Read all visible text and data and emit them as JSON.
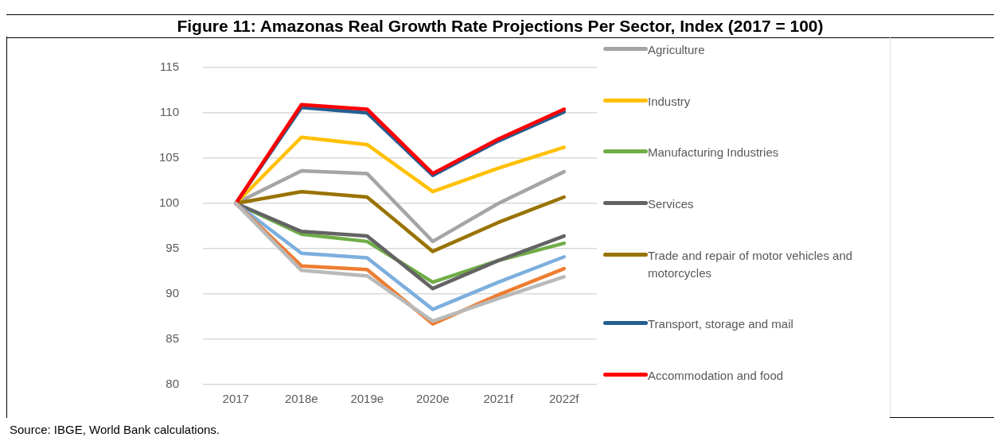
{
  "chart_data": {
    "type": "line",
    "title": "Figure 11: Amazonas Real Growth Rate Projections Per Sector, Index (2017 = 100)",
    "categories": [
      "2017",
      "2018e",
      "2019e",
      "2020e",
      "2021f",
      "2022f"
    ],
    "series": [
      {
        "name": "Agriculture",
        "color": "#a5a5a5",
        "values": [
          100,
          103.6,
          103.3,
          95.8,
          100.0,
          103.5
        ]
      },
      {
        "name": "Industry",
        "color": "#ffc000",
        "values": [
          100,
          107.3,
          106.5,
          101.3,
          103.9,
          106.2
        ]
      },
      {
        "name": "Manufacturing Industries",
        "color": "#70ad47",
        "values": [
          100,
          96.6,
          95.8,
          91.3,
          93.7,
          95.6
        ]
      },
      {
        "name": "Services",
        "color": "#636363",
        "values": [
          100,
          96.9,
          96.4,
          90.6,
          93.7,
          96.4
        ]
      },
      {
        "name": "Trade and repair of motor vehicles and motorcycles",
        "color": "#997300",
        "values": [
          100,
          101.3,
          100.7,
          94.7,
          97.9,
          100.7
        ]
      },
      {
        "name": "Transport, storage and mail",
        "color": "#255e91",
        "values": [
          100,
          110.6,
          110.0,
          103.1,
          106.9,
          110.1
        ]
      },
      {
        "name": "Accommodation and food",
        "color": "#ff0000",
        "values": [
          100,
          110.9,
          110.4,
          103.3,
          107.1,
          110.4
        ]
      },
      {
        "color": "#7cafdd",
        "values": [
          100,
          94.5,
          94.0,
          88.3,
          91.3,
          94.1
        ]
      },
      {
        "color": "#ed7d31",
        "values": [
          100,
          93.1,
          92.7,
          86.7,
          89.9,
          92.8
        ]
      },
      {
        "color": "#b9b9b9",
        "values": [
          100,
          92.6,
          92.0,
          87.0,
          89.5,
          91.9
        ]
      }
    ],
    "ylim": [
      80,
      115
    ],
    "yticks": [
      80,
      85,
      90,
      95,
      100,
      105,
      110,
      115
    ],
    "grid": "y",
    "legend": "right",
    "marker": "none",
    "line_style": "solid",
    "annotations": [
      "Source: IBGE, World Bank calculations."
    ]
  }
}
